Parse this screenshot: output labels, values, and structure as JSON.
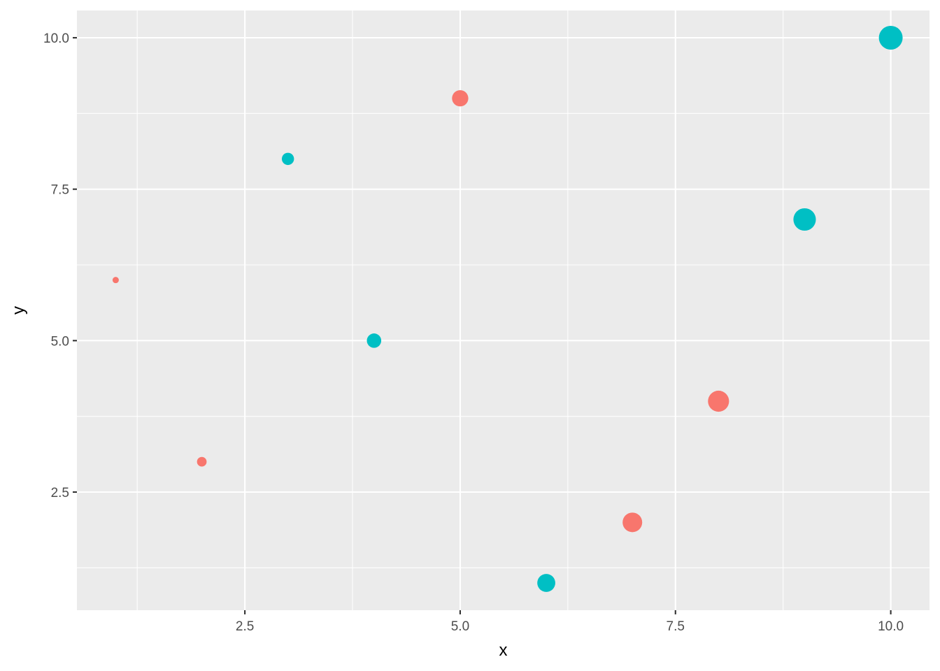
{
  "chart_data": {
    "type": "scatter",
    "title": "",
    "xlabel": "x",
    "ylabel": "y",
    "xlim": [
      0.55,
      10.45
    ],
    "ylim": [
      0.55,
      10.45
    ],
    "x_ticks": [
      2.5,
      5.0,
      7.5,
      10.0
    ],
    "x_tick_labels": [
      "2.5",
      "5.0",
      "7.5",
      "10.0"
    ],
    "y_ticks": [
      2.5,
      5.0,
      7.5,
      10.0
    ],
    "y_tick_labels": [
      "2.5",
      "5.0",
      "7.5",
      "10.0"
    ],
    "grid": true,
    "legend": "none",
    "colors": {
      "group_a": "#F8766D",
      "group_b": "#00BFC4",
      "panel": "#EBEBEB",
      "grid": "#FFFFFF"
    },
    "size_range": [
      1,
      10
    ],
    "points": [
      {
        "x": 1,
        "y": 6,
        "size": 1,
        "group": "group_a"
      },
      {
        "x": 2,
        "y": 3,
        "size": 2,
        "group": "group_a"
      },
      {
        "x": 3,
        "y": 8,
        "size": 3,
        "group": "group_b"
      },
      {
        "x": 4,
        "y": 5,
        "size": 4,
        "group": "group_b"
      },
      {
        "x": 5,
        "y": 9,
        "size": 5,
        "group": "group_a"
      },
      {
        "x": 6,
        "y": 1,
        "size": 6,
        "group": "group_b"
      },
      {
        "x": 7,
        "y": 2,
        "size": 7,
        "group": "group_a"
      },
      {
        "x": 8,
        "y": 4,
        "size": 8,
        "group": "group_a"
      },
      {
        "x": 9,
        "y": 7,
        "size": 9,
        "group": "group_b"
      },
      {
        "x": 10,
        "y": 10,
        "size": 10,
        "group": "group_b"
      }
    ]
  }
}
